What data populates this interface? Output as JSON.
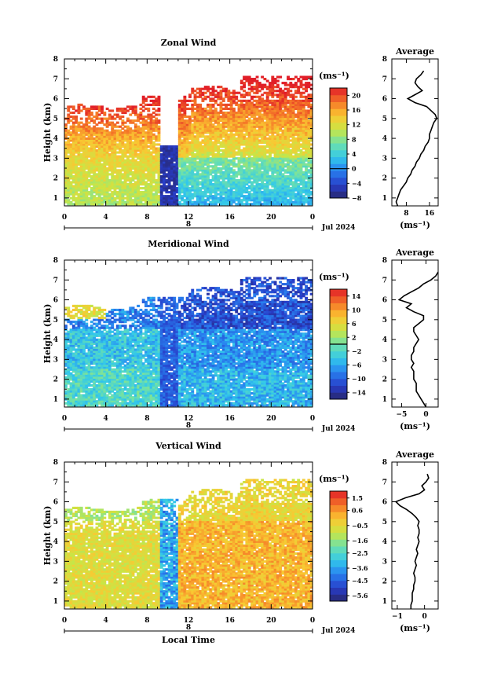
{
  "chart_data": [
    {
      "type": "heatmap",
      "title": "Zonal Wind",
      "ylabel": "Height (km)",
      "xlabel": "",
      "xlim": [
        0,
        24
      ],
      "ylim": [
        0.6,
        8
      ],
      "xticks": [
        "0",
        "4",
        "8",
        "12",
        "16",
        "20",
        "0"
      ],
      "yticks": [
        "1",
        "2",
        "3",
        "4",
        "5",
        "6",
        "7",
        "8"
      ],
      "date_marker": "8",
      "date_label": "Jul 2024",
      "colorbar": {
        "unit": "(ms⁻¹)",
        "range": [
          -8,
          22
        ],
        "tick_values": [
          20,
          16,
          12,
          8,
          4,
          0,
          -4,
          -8
        ],
        "ticks": [
          "20",
          "16",
          "12",
          "8",
          "4",
          "0",
          "−4",
          "−8"
        ],
        "contour_level": 0
      },
      "average": {
        "title": "Average",
        "xlabel": "(ms⁻¹)",
        "xlim": [
          3,
          19
        ],
        "xticks": [
          "8",
          "16"
        ],
        "xtick_values": [
          8,
          16
        ],
        "heights": [
          0.6,
          0.8,
          1.0,
          1.2,
          1.4,
          1.6,
          1.8,
          2.0,
          2.2,
          2.4,
          2.6,
          2.8,
          3.0,
          3.2,
          3.4,
          3.6,
          3.8,
          4.0,
          4.2,
          4.4,
          4.6,
          4.8,
          5.0,
          5.2,
          5.4,
          5.6,
          5.8,
          6.0,
          6.2,
          6.4,
          6.6,
          6.8,
          7.0,
          7.2,
          7.4
        ],
        "values": [
          5,
          4.5,
          5,
          5.5,
          6,
          7,
          8,
          8.5,
          9.5,
          10,
          11,
          11.5,
          12.5,
          13,
          14,
          14.5,
          15.5,
          16,
          16,
          16.5,
          17,
          17.5,
          18.5,
          18,
          16.5,
          15,
          11,
          8.5,
          11,
          13.5,
          12,
          11,
          11.5,
          13,
          14
        ]
      }
    },
    {
      "type": "heatmap",
      "title": "Meridional Wind",
      "ylabel": "Height (km)",
      "xlabel": "",
      "xlim": [
        0,
        24
      ],
      "ylim": [
        0.6,
        8
      ],
      "xticks": [
        "0",
        "4",
        "8",
        "12",
        "16",
        "20",
        "0"
      ],
      "yticks": [
        "1",
        "2",
        "3",
        "4",
        "5",
        "6",
        "7",
        "8"
      ],
      "date_marker": "8",
      "date_label": "Jul 2024",
      "colorbar": {
        "unit": "(ms⁻¹)",
        "range": [
          -16,
          16
        ],
        "tick_values": [
          14,
          10,
          6,
          2,
          -2,
          -6,
          -10,
          -14
        ],
        "ticks": [
          "14",
          "10",
          "6",
          "2",
          "−2",
          "−6",
          "−10",
          "−14"
        ],
        "contour_level": 0
      },
      "average": {
        "title": "Average",
        "xlabel": "(ms⁻¹)",
        "xlim": [
          -7,
          2.5
        ],
        "xticks": [
          "−5",
          "0"
        ],
        "xtick_values": [
          -5,
          0
        ],
        "heights": [
          0.6,
          0.8,
          1.0,
          1.2,
          1.4,
          1.6,
          1.8,
          2.0,
          2.2,
          2.4,
          2.6,
          2.8,
          3.0,
          3.2,
          3.4,
          3.6,
          3.8,
          4.0,
          4.2,
          4.4,
          4.6,
          4.8,
          5.0,
          5.2,
          5.4,
          5.6,
          5.8,
          6.0,
          6.2,
          6.4,
          6.6,
          6.8,
          7.0,
          7.2,
          7.4
        ],
        "values": [
          0,
          -0.5,
          -1,
          -1.5,
          -2,
          -2,
          -2,
          -2.5,
          -2.5,
          -2.5,
          -3,
          -2.5,
          -3,
          -3,
          -2.5,
          -2.5,
          -2,
          -1.5,
          -2,
          -2.5,
          -2.5,
          -1.5,
          -0.5,
          -0.5,
          -2.5,
          -4,
          -3,
          -5.5,
          -4.5,
          -3,
          -1.5,
          -0.5,
          1,
          2,
          2.5
        ]
      }
    },
    {
      "type": "heatmap",
      "title": "Vertical Wind",
      "ylabel": "Height (km)",
      "xlabel": "Local Time",
      "xlim": [
        0,
        24
      ],
      "ylim": [
        0.6,
        8
      ],
      "xticks": [
        "0",
        "4",
        "8",
        "12",
        "16",
        "20",
        "0"
      ],
      "yticks": [
        "1",
        "2",
        "3",
        "4",
        "5",
        "6",
        "7",
        "8"
      ],
      "date_marker": "8",
      "date_label": "Jul 2024",
      "colorbar": {
        "unit": "(ms⁻¹)",
        "range": [
          -6,
          2
        ],
        "tick_values": [
          1.5,
          0.6,
          -0.5,
          -1.6,
          -2.5,
          -3.6,
          -4.5,
          -5.6
        ],
        "ticks": [
          "1.5",
          "0.6",
          "−0.5",
          "−1.6",
          "−2.5",
          "−3.6",
          "−4.5",
          "−5.6"
        ],
        "contour_level": null
      },
      "average": {
        "title": "Average",
        "xlabel": "(ms⁻¹)",
        "xlim": [
          -1.2,
          0.5
        ],
        "xticks": [
          "−1",
          "0"
        ],
        "xtick_values": [
          -1,
          0
        ],
        "heights": [
          0.6,
          0.8,
          1.0,
          1.2,
          1.4,
          1.6,
          1.8,
          2.0,
          2.2,
          2.4,
          2.6,
          2.8,
          3.0,
          3.2,
          3.4,
          3.6,
          3.8,
          4.0,
          4.2,
          4.4,
          4.6,
          4.8,
          5.0,
          5.2,
          5.4,
          5.6,
          5.8,
          6.0,
          6.2,
          6.4,
          6.6,
          6.8,
          7.0,
          7.2,
          7.4
        ],
        "values": [
          -0.5,
          -0.5,
          -0.45,
          -0.45,
          -0.45,
          -0.4,
          -0.4,
          -0.35,
          -0.35,
          -0.4,
          -0.35,
          -0.3,
          -0.35,
          -0.3,
          -0.25,
          -0.3,
          -0.25,
          -0.2,
          -0.25,
          -0.2,
          -0.2,
          -0.25,
          -0.2,
          -0.3,
          -0.45,
          -0.65,
          -0.9,
          -1.05,
          -0.7,
          -0.2,
          0.0,
          -0.1,
          0.05,
          0.15,
          0.1
        ]
      }
    }
  ]
}
